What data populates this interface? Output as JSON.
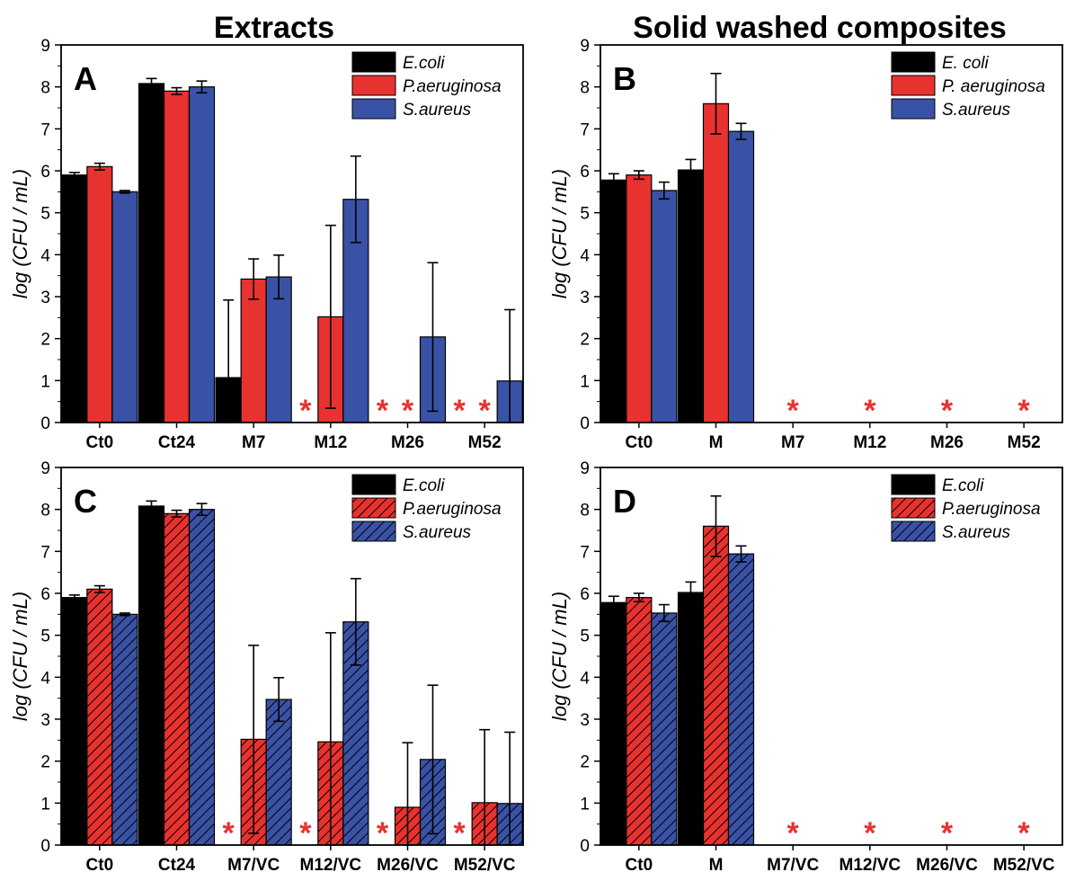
{
  "titles": {
    "left": "Extracts",
    "right": "Solid washed composites"
  },
  "colors": {
    "E.coli": "#000000",
    "P.aeruginosa": "#e8322f",
    "S.aureus": "#3a52a6",
    "star": "#e8322f"
  },
  "chart_data": [
    {
      "panel": "A",
      "type": "bar",
      "hatched": false,
      "ylabel": "log (CFU / mL)",
      "ylim": [
        0,
        9
      ],
      "yticks": [
        0,
        1,
        2,
        3,
        4,
        5,
        6,
        7,
        8,
        9
      ],
      "categories": [
        "Ct0",
        "Ct24",
        "M7",
        "M12",
        "M26",
        "M52"
      ],
      "legend_position": "top-right",
      "series": [
        {
          "name": "E.coli",
          "values": [
            5.9,
            8.08,
            1.07,
            null,
            null,
            null
          ],
          "errors": [
            0.06,
            0.12,
            1.85,
            null,
            null,
            null
          ]
        },
        {
          "name": "P.aeruginosa",
          "values": [
            6.1,
            7.9,
            3.42,
            2.52,
            null,
            null
          ],
          "errors": [
            0.08,
            0.08,
            0.48,
            2.18,
            null,
            null
          ]
        },
        {
          "name": "S.aureus",
          "values": [
            5.5,
            8.0,
            3.47,
            5.32,
            2.04,
            0.99
          ],
          "errors": [
            0.03,
            0.14,
            0.52,
            1.03,
            1.77,
            1.7
          ]
        }
      ],
      "asterisks": [
        {
          "category": "M12",
          "series": "E.coli"
        },
        {
          "category": "M26",
          "series": "E.coli"
        },
        {
          "category": "M26",
          "series": "P.aeruginosa"
        },
        {
          "category": "M52",
          "series": "E.coli"
        },
        {
          "category": "M52",
          "series": "P.aeruginosa"
        }
      ]
    },
    {
      "panel": "B",
      "type": "bar",
      "hatched": false,
      "ylabel": "log (CFU / mL)",
      "ylim": [
        0,
        9
      ],
      "yticks": [
        0,
        1,
        2,
        3,
        4,
        5,
        6,
        7,
        8,
        9
      ],
      "categories": [
        "Ct0",
        "M",
        "M7",
        "M12",
        "M26",
        "M52"
      ],
      "legend_position": "top-right",
      "series": [
        {
          "name": "E. coli",
          "values": [
            5.78,
            6.02,
            null,
            null,
            null,
            null
          ],
          "errors": [
            0.15,
            0.25,
            null,
            null,
            null,
            null
          ]
        },
        {
          "name": "P. aeruginosa",
          "values": [
            5.9,
            7.6,
            null,
            null,
            null,
            null
          ],
          "errors": [
            0.1,
            0.72,
            null,
            null,
            null,
            null
          ]
        },
        {
          "name": "S.aureus",
          "values": [
            5.53,
            6.94,
            null,
            null,
            null,
            null
          ],
          "errors": [
            0.2,
            0.19,
            null,
            null,
            null,
            null
          ]
        }
      ],
      "asterisks": [
        {
          "category": "M7",
          "series": "all"
        },
        {
          "category": "M12",
          "series": "all"
        },
        {
          "category": "M26",
          "series": "all"
        },
        {
          "category": "M52",
          "series": "all"
        }
      ]
    },
    {
      "panel": "C",
      "type": "bar",
      "hatched": true,
      "ylabel": "log (CFU / mL)",
      "ylim": [
        0,
        9
      ],
      "yticks": [
        0,
        1,
        2,
        3,
        4,
        5,
        6,
        7,
        8,
        9
      ],
      "categories": [
        "Ct0",
        "Ct24",
        "M7/VC",
        "M12/VC",
        "M26/VC",
        "M52/VC"
      ],
      "legend_position": "top-right",
      "series": [
        {
          "name": "E.coli",
          "values": [
            5.9,
            8.08,
            null,
            null,
            null,
            null
          ],
          "errors": [
            0.06,
            0.12,
            null,
            null,
            null,
            null
          ]
        },
        {
          "name": "P.aeruginosa",
          "values": [
            6.1,
            7.9,
            2.52,
            2.46,
            0.9,
            1.01
          ],
          "errors": [
            0.08,
            0.08,
            2.24,
            2.6,
            1.54,
            1.74
          ]
        },
        {
          "name": "S.aureus",
          "values": [
            5.5,
            8.0,
            3.47,
            5.32,
            2.04,
            0.99
          ],
          "errors": [
            0.03,
            0.14,
            0.52,
            1.03,
            1.77,
            1.7
          ]
        }
      ],
      "asterisks": [
        {
          "category": "M7/VC",
          "series": "E.coli"
        },
        {
          "category": "M12/VC",
          "series": "E.coli"
        },
        {
          "category": "M26/VC",
          "series": "E.coli"
        },
        {
          "category": "M52/VC",
          "series": "E.coli"
        }
      ]
    },
    {
      "panel": "D",
      "type": "bar",
      "hatched": true,
      "ylabel": "log (CFU / mL)",
      "ylim": [
        0,
        9
      ],
      "yticks": [
        0,
        1,
        2,
        3,
        4,
        5,
        6,
        7,
        8,
        9
      ],
      "categories": [
        "Ct0",
        "M",
        "M7/VC",
        "M12/VC",
        "M26/VC",
        "M52/VC"
      ],
      "legend_position": "top-right",
      "series": [
        {
          "name": "E.coli",
          "values": [
            5.78,
            6.02,
            null,
            null,
            null,
            null
          ],
          "errors": [
            0.15,
            0.25,
            null,
            null,
            null,
            null
          ]
        },
        {
          "name": "P.aeruginosa",
          "values": [
            5.9,
            7.6,
            null,
            null,
            null,
            null
          ],
          "errors": [
            0.1,
            0.72,
            null,
            null,
            null,
            null
          ]
        },
        {
          "name": "S.aureus",
          "values": [
            5.53,
            6.94,
            null,
            null,
            null,
            null
          ],
          "errors": [
            0.2,
            0.19,
            null,
            null,
            null,
            null
          ]
        }
      ],
      "asterisks": [
        {
          "category": "M7/VC",
          "series": "all"
        },
        {
          "category": "M12/VC",
          "series": "all"
        },
        {
          "category": "M26/VC",
          "series": "all"
        },
        {
          "category": "M52/VC",
          "series": "all"
        }
      ]
    }
  ]
}
